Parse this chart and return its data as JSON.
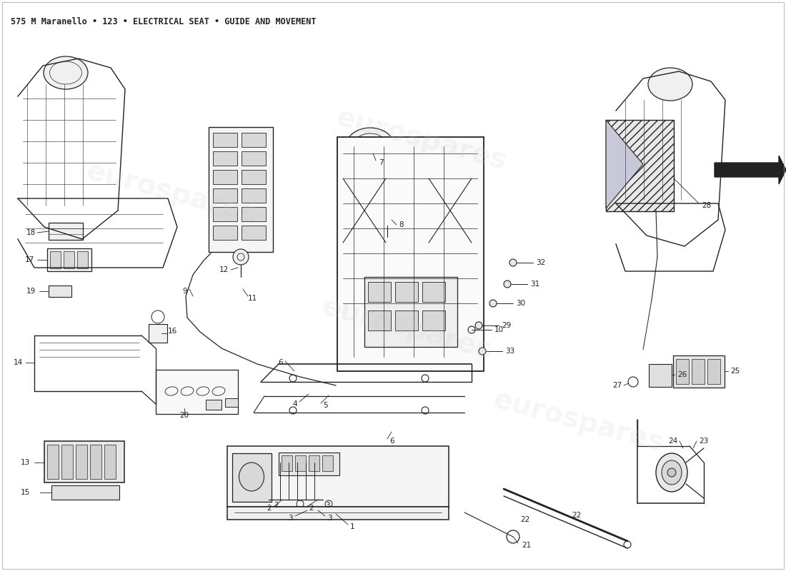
{
  "title": "575 M Maranello • 123 • ELECTRICAL SEAT • GUIDE AND MOVEMENT",
  "title_fontsize": 8.5,
  "background_color": "#ffffff",
  "watermark_text": "eurospares",
  "label_fontsize": 7.5,
  "line_color": "#222222",
  "watermark_color": "#cccccc",
  "watermark_fontsize": 28,
  "watermark_alpha": 0.18
}
